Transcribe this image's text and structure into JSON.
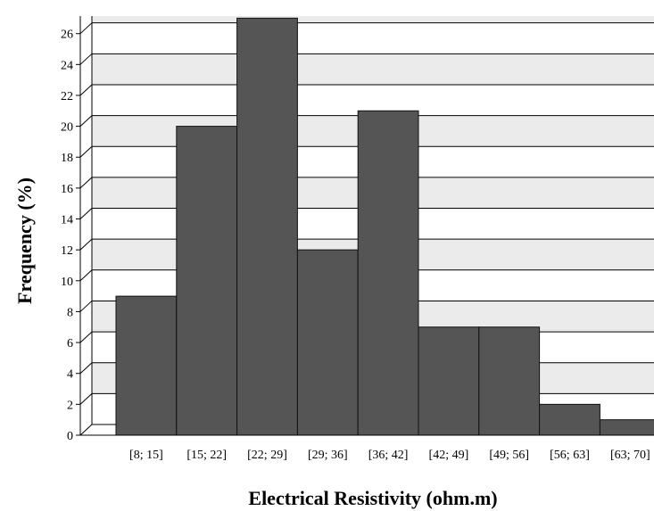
{
  "chart_data": {
    "type": "bar",
    "title": "",
    "xlabel": "Electrical Resistivity (ohm.m)",
    "ylabel": "Frequency (%)",
    "categories": [
      "[8; 15]",
      "[15; 22]",
      "[22; 29]",
      "[29; 36]",
      "[36; 42]",
      "[42; 49]",
      "[49; 56]",
      "[56; 63]",
      "[63; 70]"
    ],
    "values": [
      9,
      20,
      27,
      12,
      21,
      7,
      7,
      2,
      1
    ],
    "ylim": [
      0,
      27
    ],
    "yticks": [
      "0",
      "2",
      "4",
      "6",
      "8",
      "10",
      "12",
      "14",
      "16",
      "18",
      "20",
      "22",
      "24",
      "26"
    ],
    "grid": true,
    "legend": "none",
    "colors": {
      "bar_fill": "#555555",
      "bar_edge": "#111111",
      "band_light": "#ebebeb",
      "band_white": "#ffffff",
      "gridline": "#000000"
    }
  }
}
